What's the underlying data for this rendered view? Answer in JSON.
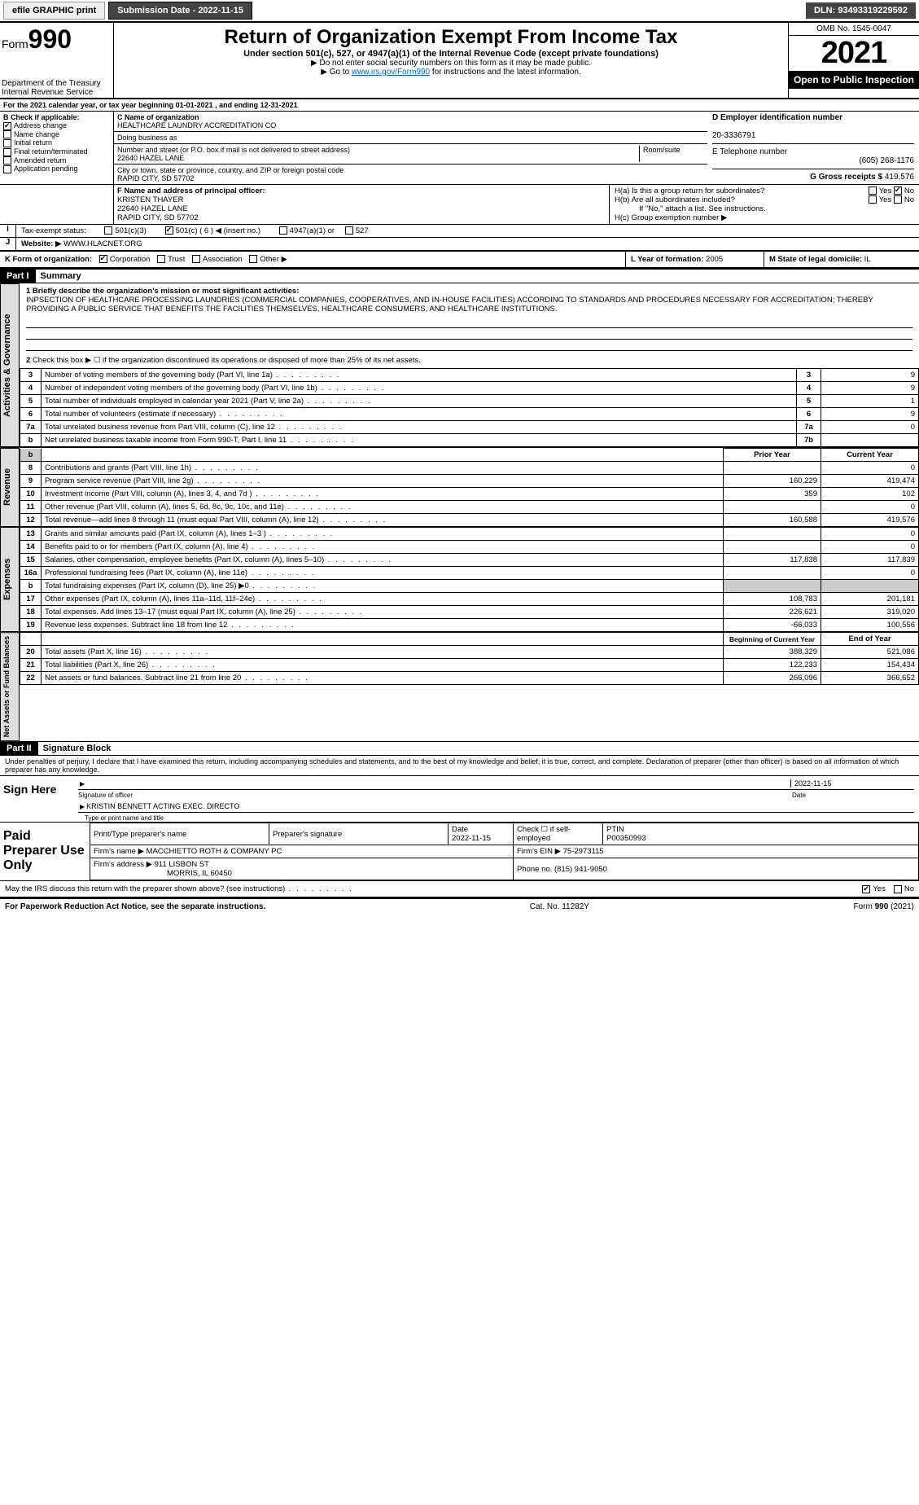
{
  "topbar": {
    "efile": "efile GRAPHIC print",
    "submission": "Submission Date - 2022-11-15",
    "dln": "DLN: 93493319229592"
  },
  "header": {
    "form_word": "Form",
    "form_num": "990",
    "title": "Return of Organization Exempt From Income Tax",
    "subtitle": "Under section 501(c), 527, or 4947(a)(1) of the Internal Revenue Code (except private foundations)",
    "note1": "▶ Do not enter social security numbers on this form as it may be made public.",
    "note2_pre": "▶ Go to ",
    "note2_link": "www.irs.gov/Form990",
    "note2_post": " for instructions and the latest information.",
    "omb": "OMB No. 1545-0047",
    "year": "2021",
    "open": "Open to Public Inspection",
    "dept": "Department of the Treasury",
    "irs": "Internal Revenue Service"
  },
  "line_a": "For the 2021 calendar year, or tax year beginning 01-01-2021   , and ending 12-31-2021",
  "box_b": {
    "label": "B Check if applicable:",
    "items": [
      "Address change",
      "Name change",
      "Initial return",
      "Final return/terminated",
      "Amended return",
      "Application pending"
    ],
    "checked_idx": 0
  },
  "box_c": {
    "label_name": "C Name of organization",
    "org": "HEALTHCARE LAUNDRY ACCREDITATION CO",
    "dba_label": "Doing business as",
    "addr_label": "Number and street (or P.O. box if mail is not delivered to street address)",
    "room_label": "Room/suite",
    "addr": "22640 HAZEL LANE",
    "city_label": "City or town, state or province, country, and ZIP or foreign postal code",
    "city": "RAPID CITY, SD  57702"
  },
  "box_d": {
    "label": "D Employer identification number",
    "val": "20-3336791"
  },
  "box_e": {
    "label": "E Telephone number",
    "val": "(605) 268-1176"
  },
  "box_g": {
    "label": "G Gross receipts $",
    "val": "419,576"
  },
  "box_f": {
    "label": "F  Name and address of principal officer:",
    "name": "KRISTEN THAYER",
    "addr1": "22640 HAZEL LANE",
    "addr2": "RAPID CITY, SD  57702"
  },
  "box_h": {
    "ha": "H(a)  Is this a group return for subordinates?",
    "hb": "H(b)  Are all subordinates included?",
    "hb_note": "If \"No,\" attach a list. See instructions.",
    "hc": "H(c)  Group exemption number ▶",
    "yes": "Yes",
    "no": "No"
  },
  "box_i": {
    "label": "Tax-exempt status:",
    "opts": [
      "501(c)(3)",
      "501(c) ( 6 ) ◀ (insert no.)",
      "4947(a)(1) or",
      "527"
    ],
    "checked_idx": 1
  },
  "box_j": {
    "label": "Website: ▶",
    "val": "WWW.HLACNET.ORG"
  },
  "box_k": {
    "label": "K Form of organization:",
    "opts": [
      "Corporation",
      "Trust",
      "Association",
      "Other ▶"
    ],
    "checked_idx": 0
  },
  "box_l": {
    "label": "L Year of formation:",
    "val": "2005"
  },
  "box_m": {
    "label": "M State of legal domicile:",
    "val": "IL"
  },
  "part1": {
    "bar": "Part I",
    "title": "Summary",
    "line1_label": "1 Briefly describe the organization's mission or most significant activities:",
    "mission": "INPSECTION OF HEALTHCARE PROCESSING LAUNDRIES (COMMERCIAL COMPANIES, COOPERATIVES, AND IN-HOUSE FACILITIES) ACCORDING TO STANDARDS AND PROCEDURES NECESSARY FOR ACCREDITATION; THEREBY PROVIDING A PUBLIC SERVICE THAT BENEFITS THE FACILITIES THEMSELVES, HEALTHCARE CONSUMERS, AND HEALTHCARE INSTITUTIONS.",
    "line2": "Check this box ▶ ☐ if the organization discontinued its operations or disposed of more than 25% of its net assets."
  },
  "sidetabs": {
    "gov": "Activities & Governance",
    "rev": "Revenue",
    "exp": "Expenses",
    "net": "Net Assets or Fund Balances"
  },
  "gov_lines": [
    {
      "n": "3",
      "t": "Number of voting members of the governing body (Part VI, line 1a)",
      "b": "3",
      "v": "9"
    },
    {
      "n": "4",
      "t": "Number of independent voting members of the governing body (Part VI, line 1b)",
      "b": "4",
      "v": "9"
    },
    {
      "n": "5",
      "t": "Total number of individuals employed in calendar year 2021 (Part V, line 2a)",
      "b": "5",
      "v": "1"
    },
    {
      "n": "6",
      "t": "Total number of volunteers (estimate if necessary)",
      "b": "6",
      "v": "9"
    },
    {
      "n": "7a",
      "t": "Total unrelated business revenue from Part VIII, column (C), line 12",
      "b": "7a",
      "v": "0"
    },
    {
      "n": "b",
      "t": "Net unrelated business taxable income from Form 990-T, Part I, line 11",
      "b": "7b",
      "v": ""
    }
  ],
  "col_headers": {
    "prior": "Prior Year",
    "current": "Current Year"
  },
  "rev_lines": [
    {
      "n": "8",
      "t": "Contributions and grants (Part VIII, line 1h)",
      "p": "",
      "c": "0"
    },
    {
      "n": "9",
      "t": "Program service revenue (Part VIII, line 2g)",
      "p": "160,229",
      "c": "419,474"
    },
    {
      "n": "10",
      "t": "Investment income (Part VIII, column (A), lines 3, 4, and 7d )",
      "p": "359",
      "c": "102"
    },
    {
      "n": "11",
      "t": "Other revenue (Part VIII, column (A), lines 5, 6d, 8c, 9c, 10c, and 11e)",
      "p": "",
      "c": "0"
    },
    {
      "n": "12",
      "t": "Total revenue—add lines 8 through 11 (must equal Part VIII, column (A), line 12)",
      "p": "160,588",
      "c": "419,576"
    }
  ],
  "exp_lines": [
    {
      "n": "13",
      "t": "Grants and similar amounts paid (Part IX, column (A), lines 1–3 )",
      "p": "",
      "c": "0"
    },
    {
      "n": "14",
      "t": "Benefits paid to or for members (Part IX, column (A), line 4)",
      "p": "",
      "c": "0"
    },
    {
      "n": "15",
      "t": "Salaries, other compensation, employee benefits (Part IX, column (A), lines 5–10)",
      "p": "117,838",
      "c": "117,839"
    },
    {
      "n": "16a",
      "t": "Professional fundraising fees (Part IX, column (A), line 11e)",
      "p": "",
      "c": "0"
    },
    {
      "n": "b",
      "t": "Total fundraising expenses (Part IX, column (D), line 25) ▶0",
      "p": "shade",
      "c": "shade"
    },
    {
      "n": "17",
      "t": "Other expenses (Part IX, column (A), lines 11a–11d, 11f–24e)",
      "p": "108,783",
      "c": "201,181"
    },
    {
      "n": "18",
      "t": "Total expenses. Add lines 13–17 (must equal Part IX, column (A), line 25)",
      "p": "226,621",
      "c": "319,020"
    },
    {
      "n": "19",
      "t": "Revenue less expenses. Subtract line 18 from line 12",
      "p": "-66,033",
      "c": "100,556"
    }
  ],
  "net_headers": {
    "beg": "Beginning of Current Year",
    "end": "End of Year"
  },
  "net_lines": [
    {
      "n": "20",
      "t": "Total assets (Part X, line 16)",
      "p": "388,329",
      "c": "521,086"
    },
    {
      "n": "21",
      "t": "Total liabilities (Part X, line 26)",
      "p": "122,233",
      "c": "154,434"
    },
    {
      "n": "22",
      "t": "Net assets or fund balances. Subtract line 21 from line 20",
      "p": "266,096",
      "c": "366,652"
    }
  ],
  "part2": {
    "bar": "Part II",
    "title": "Signature Block",
    "decl": "Under penalties of perjury, I declare that I have examined this return, including accompanying schedules and statements, and to the best of my knowledge and belief, it is true, correct, and complete. Declaration of preparer (other than officer) is based on all information of which preparer has any knowledge."
  },
  "sign": {
    "here": "Sign Here",
    "sig_officer": "Signature of officer",
    "date": "Date",
    "date_val": "2022-11-15",
    "typed": "KRISTIN BENNETT ACTING EXEC. DIRECTO",
    "typed_label": "Type or print name and title"
  },
  "paid": {
    "label": "Paid Preparer Use Only",
    "h1": "Print/Type preparer's name",
    "h2": "Preparer's signature",
    "h3": "Date",
    "h3v": "2022-11-15",
    "h4": "Check ☐ if self-employed",
    "h5": "PTIN",
    "h5v": "P00350993",
    "firm_name_l": "Firm's name   ▶",
    "firm_name": "MACCHIETTO ROTH & COMPANY PC",
    "firm_ein_l": "Firm's EIN ▶",
    "firm_ein": "75-2973115",
    "firm_addr_l": "Firm's address ▶",
    "firm_addr1": "911 LISBON ST",
    "firm_addr2": "MORRIS, IL  60450",
    "phone_l": "Phone no.",
    "phone": "(815) 941-9050"
  },
  "discuss": {
    "q": "May the IRS discuss this return with the preparer shown above? (see instructions)",
    "yes": "Yes",
    "no": "No"
  },
  "footer": {
    "left": "For Paperwork Reduction Act Notice, see the separate instructions.",
    "mid": "Cat. No. 11282Y",
    "right": "Form 990 (2021)"
  }
}
